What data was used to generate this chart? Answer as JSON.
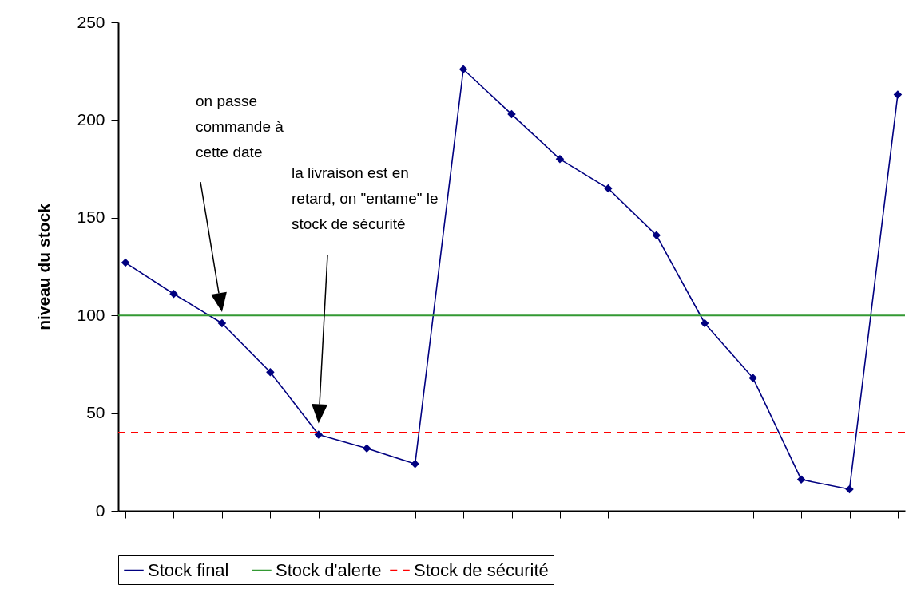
{
  "chart_data": {
    "type": "line",
    "ylabel": "niveau du  stock",
    "categories": [
      null,
      null,
      null,
      null,
      null,
      null,
      null,
      null,
      null,
      null,
      null,
      null,
      null,
      null,
      null,
      null,
      null
    ],
    "series": [
      {
        "name": "Stock    final",
        "color": "#000080",
        "values": [
          127,
          111,
          96,
          71,
          39,
          32,
          24,
          226,
          203,
          180,
          165,
          141,
          96,
          68,
          16,
          11,
          213
        ]
      }
    ],
    "ref_lines": [
      {
        "axis": "y",
        "value": 100,
        "label": "Stock d'alerte",
        "color": "#339933",
        "line_style": "solid"
      },
      {
        "axis": "y",
        "value": 40,
        "label": "Stock de sécurité",
        "color": "#ff0000",
        "line_style": "dashed"
      }
    ],
    "annotations": [
      "on passe\ncommande à\ncette date",
      "la livraison est en\nretard, on \"entame\" le\nstock de sécurité"
    ],
    "ylim": [
      0,
      250
    ],
    "yticks": [
      0,
      50,
      100,
      150,
      200,
      250
    ],
    "tick_labels": "y",
    "legend": "bottom",
    "marker": "diamond",
    "line_style": "solid"
  }
}
